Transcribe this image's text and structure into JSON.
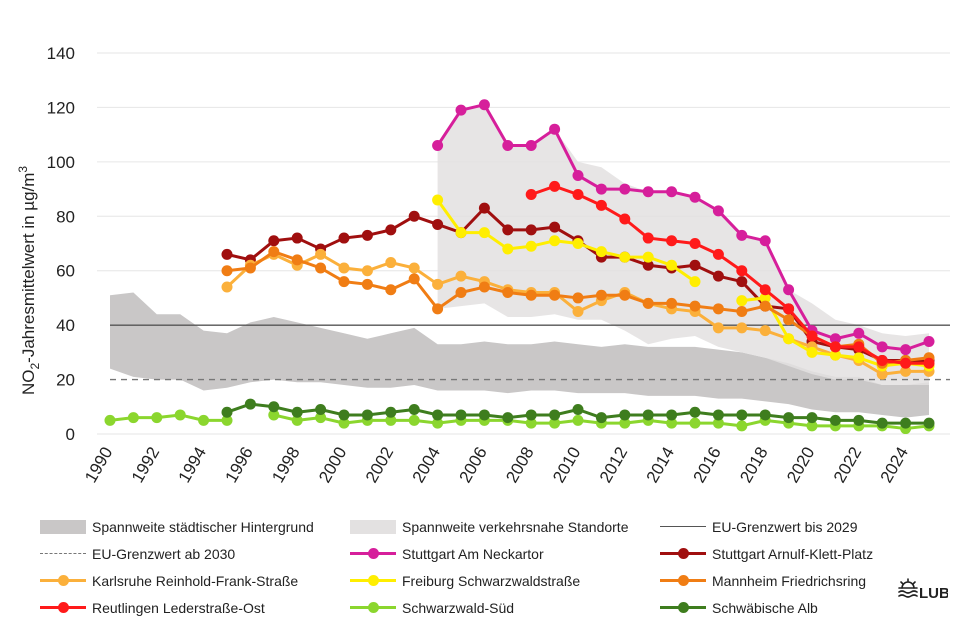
{
  "chart_data": {
    "type": "line",
    "ylabel_main": "NO",
    "ylabel_sub": "2",
    "ylabel_rest": "-Jahresmittelwert  in µg/m",
    "ylabel_sup": "3",
    "ylim": [
      0,
      140
    ],
    "yticks": [
      0,
      20,
      40,
      60,
      80,
      100,
      120,
      140
    ],
    "xlim": [
      1989.4,
      2025.6
    ],
    "xticks": [
      1990,
      1992,
      1994,
      1996,
      1998,
      2000,
      2002,
      2004,
      2006,
      2008,
      2010,
      2012,
      2014,
      2016,
      2018,
      2020,
      2022,
      2024
    ],
    "grid": "horizontal",
    "legend_position": "bottom",
    "bands": [
      {
        "name": "Spannweite städtischer Hintergrund",
        "color": "#c9c7c7",
        "x": [
          1990,
          1991,
          1992,
          1993,
          1994,
          1995,
          1996,
          1997,
          1998,
          1999,
          2000,
          2001,
          2002,
          2003,
          2004,
          2005,
          2006,
          2007,
          2008,
          2009,
          2010,
          2011,
          2012,
          2013,
          2014,
          2015,
          2016,
          2017,
          2018,
          2019,
          2020,
          2021,
          2022,
          2023,
          2024,
          2025
        ],
        "upper": [
          51,
          52,
          44,
          44,
          38,
          37,
          41,
          43,
          41,
          39,
          37,
          35,
          37,
          39,
          33,
          33,
          34,
          33,
          33,
          34,
          33,
          32,
          33,
          32,
          32,
          32,
          31,
          30,
          28,
          26,
          23,
          21,
          21,
          18,
          18,
          19
        ],
        "lower": [
          24,
          21,
          20,
          20,
          16,
          17,
          19,
          20,
          19,
          19,
          18,
          17,
          17,
          18,
          16,
          16,
          16,
          15,
          16,
          16,
          15,
          15,
          15,
          14,
          14,
          14,
          13,
          13,
          12,
          11,
          9,
          8,
          8,
          7,
          6,
          7
        ]
      },
      {
        "name": "Spannweite verkehrsnahe Standorte",
        "color": "#e3e1e1",
        "x": [
          2004,
          2005,
          2006,
          2007,
          2008,
          2009,
          2010,
          2011,
          2012,
          2013,
          2014,
          2015,
          2016,
          2017,
          2018,
          2019,
          2020,
          2021,
          2022,
          2023,
          2024,
          2025
        ],
        "upper": [
          106,
          119,
          121,
          106,
          106,
          112,
          100,
          98,
          92,
          89,
          89,
          87,
          82,
          73,
          71,
          53,
          48,
          42,
          40,
          37,
          36,
          37
        ],
        "lower": [
          46,
          47,
          48,
          43,
          43,
          44,
          42,
          42,
          38,
          33,
          35,
          36,
          32,
          30,
          28,
          25,
          22,
          20,
          20,
          18,
          18,
          18
        ]
      }
    ],
    "reference_lines": [
      {
        "name": "EU-Grenzwert bis 2029",
        "y": 40,
        "color": "#555555",
        "style": "solid"
      },
      {
        "name": "EU-Grenzwert ab 2030",
        "y": 20,
        "color": "#777777",
        "style": "dashed"
      }
    ],
    "series": [
      {
        "name": "Stuttgart Am Neckartor",
        "color": "#d61f9b",
        "x": [
          2004,
          2005,
          2006,
          2007,
          2008,
          2009,
          2010,
          2011,
          2012,
          2013,
          2014,
          2015,
          2016,
          2017,
          2018,
          2019,
          2020,
          2021,
          2022,
          2023,
          2024,
          2025
        ],
        "values": [
          106,
          119,
          121,
          106,
          106,
          112,
          95,
          90,
          90,
          89,
          89,
          87,
          82,
          73,
          71,
          53,
          38,
          35,
          37,
          32,
          31,
          34
        ]
      },
      {
        "name": "Stuttgart Arnulf-Klett-Platz",
        "color": "#a00f0f",
        "x": [
          1995,
          1996,
          1997,
          1998,
          1999,
          2000,
          2001,
          2002,
          2003,
          2004,
          2005,
          2006,
          2007,
          2008,
          2009,
          2010,
          2011,
          2012,
          2013,
          2014,
          2015,
          2016,
          2017,
          2018,
          2019,
          2020,
          2021,
          2022,
          2023,
          2024,
          2025
        ],
        "values": [
          66,
          64,
          71,
          72,
          68,
          72,
          73,
          75,
          80,
          77,
          74,
          83,
          75,
          75,
          76,
          71,
          65,
          65,
          62,
          61,
          62,
          58,
          56,
          47,
          46,
          34,
          32,
          31,
          27,
          27,
          27
        ]
      },
      {
        "name": "Karlsruhe Reinhold-Frank-Straße",
        "color": "#fbb03b",
        "x": [
          1995,
          1996,
          1997,
          1998,
          1999,
          2000,
          2001,
          2002,
          2003,
          2004,
          2005,
          2006,
          2007,
          2008,
          2009,
          2010,
          2011,
          2012,
          2013,
          2014,
          2015,
          2016,
          2017,
          2018,
          2019,
          2020,
          2021,
          2022,
          2023,
          2024,
          2025
        ],
        "values": [
          54,
          62,
          66,
          62,
          66,
          61,
          60,
          63,
          61,
          55,
          58,
          56,
          53,
          52,
          52,
          45,
          49,
          52,
          48,
          46,
          45,
          39,
          39,
          38,
          35,
          32,
          29,
          27,
          22,
          23,
          23
        ]
      },
      {
        "name": "Freiburg Schwarzwaldstraße",
        "color": "#ffee00",
        "x": [
          2004,
          2005,
          2006,
          2007,
          2008,
          2009,
          2010,
          2011,
          2012,
          2013,
          2014,
          2015,
          2016,
          2017,
          2018,
          2019,
          2020,
          2021,
          2022,
          2023,
          2024,
          2025
        ],
        "values": [
          86,
          74,
          74,
          68,
          69,
          71,
          70,
          67,
          65,
          65,
          62,
          56,
          null,
          49,
          50,
          35,
          30,
          29,
          28,
          25,
          26,
          25
        ]
      },
      {
        "name": "Mannheim Friedrichsring",
        "color": "#f07d14",
        "x": [
          1995,
          1996,
          1997,
          1998,
          1999,
          2000,
          2001,
          2002,
          2003,
          2004,
          2005,
          2006,
          2007,
          2008,
          2009,
          2010,
          2011,
          2012,
          2013,
          2014,
          2015,
          2016,
          2017,
          2018,
          2019,
          2020,
          2021,
          2022,
          2023,
          2024,
          2025
        ],
        "values": [
          60,
          61,
          67,
          64,
          61,
          56,
          55,
          53,
          57,
          46,
          52,
          54,
          52,
          51,
          51,
          50,
          51,
          51,
          48,
          48,
          47,
          46,
          45,
          47,
          42,
          36,
          32,
          33,
          26,
          27,
          28
        ]
      },
      {
        "name": "Reutlingen Lederstraße-Ost",
        "color": "#ff1a1a",
        "x": [
          2008,
          2009,
          2010,
          2011,
          2012,
          2013,
          2014,
          2015,
          2016,
          2017,
          2018,
          2019,
          2020,
          2021,
          2022,
          2023,
          2024,
          2025
        ],
        "values": [
          88,
          91,
          88,
          84,
          79,
          72,
          71,
          70,
          66,
          60,
          53,
          46,
          36,
          32,
          32,
          27,
          26,
          26
        ]
      },
      {
        "name": "Schwarzwald-Süd",
        "color": "#8bd62e",
        "x": [
          1990,
          1991,
          1992,
          1993,
          1994,
          1995,
          1996,
          1997,
          1998,
          1999,
          2000,
          2001,
          2002,
          2003,
          2004,
          2005,
          2006,
          2007,
          2008,
          2009,
          2010,
          2011,
          2012,
          2013,
          2014,
          2015,
          2016,
          2017,
          2018,
          2019,
          2020,
          2021,
          2022,
          2023,
          2024,
          2025
        ],
        "values": [
          5,
          6,
          6,
          7,
          5,
          5,
          null,
          7,
          5,
          6,
          4,
          5,
          5,
          5,
          4,
          5,
          5,
          5,
          4,
          4,
          5,
          4,
          4,
          5,
          4,
          4,
          4,
          3,
          5,
          4,
          3,
          3,
          3,
          3,
          2,
          3
        ]
      },
      {
        "name": "Schwäbische Alb",
        "color": "#3e7d1e",
        "x": [
          1995,
          1996,
          1997,
          1998,
          1999,
          2000,
          2001,
          2002,
          2003,
          2004,
          2005,
          2006,
          2007,
          2008,
          2009,
          2010,
          2011,
          2012,
          2013,
          2014,
          2015,
          2016,
          2017,
          2018,
          2019,
          2020,
          2021,
          2022,
          2023,
          2024,
          2025
        ],
        "values": [
          8,
          11,
          10,
          8,
          9,
          7,
          7,
          8,
          9,
          7,
          7,
          7,
          6,
          7,
          7,
          9,
          6,
          7,
          7,
          7,
          8,
          7,
          7,
          7,
          6,
          6,
          5,
          5,
          4,
          4,
          4
        ]
      }
    ]
  },
  "legend": {
    "band_urban": "Spannweite städtischer Hintergrund",
    "band_traffic": "Spannweite verkehrsnahe Standorte",
    "eu_2029": "EU-Grenzwert bis 2029",
    "eu_2030": "EU-Grenzwert ab 2030",
    "neckartor": "Stuttgart Am Neckartor",
    "arnulf": "Stuttgart Arnulf-Klett-Platz",
    "karlsruhe": "Karlsruhe Reinhold-Frank-Straße",
    "freiburg": "Freiburg Schwarzwaldstraße",
    "mannheim": "Mannheim Friedrichsring",
    "reutlingen": "Reutlingen Lederstraße-Ost",
    "schwarzwald": "Schwarzwald-Süd",
    "alb": "Schwäbische Alb"
  },
  "logo": {
    "text": "LUBW"
  },
  "colors": {
    "band_urban": "#c9c7c7",
    "band_traffic": "#e3e1e1",
    "eu_2029": "#555555",
    "eu_2030": "#777777",
    "neckartor": "#d61f9b",
    "arnulf": "#a00f0f",
    "karlsruhe": "#fbb03b",
    "freiburg": "#ffee00",
    "mannheim": "#f07d14",
    "reutlingen": "#ff1a1a",
    "schwarzwald": "#8bd62e",
    "alb": "#3e7d1e"
  }
}
